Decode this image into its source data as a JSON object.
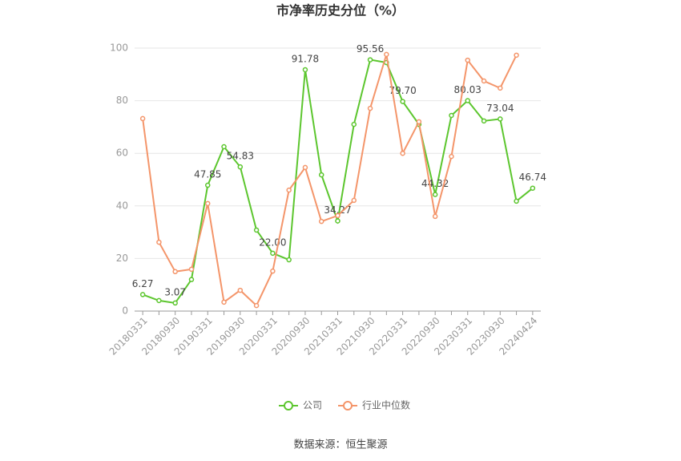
{
  "chart_data": {
    "type": "line",
    "title": "市净率历史分位（%）",
    "source": "数据来源：恒生聚源",
    "categories": [
      "20180331",
      null,
      "20180930",
      null,
      "20190331",
      null,
      "20190930",
      null,
      "20200331",
      null,
      "20200930",
      null,
      "20210331",
      null,
      "20210930",
      null,
      "20220331",
      null,
      "20220930",
      null,
      "20230331",
      null,
      "20230930",
      null,
      "20240424"
    ],
    "series": [
      {
        "name": "公司",
        "color": "#5cc62e",
        "values": [
          6.27,
          4,
          3.07,
          12,
          47.85,
          62.5,
          54.83,
          30.8,
          22.0,
          19.5,
          91.78,
          51.8,
          34.27,
          71,
          95.56,
          94.5,
          79.7,
          71,
          44.32,
          74.4,
          80.03,
          72.3,
          73.04,
          41.8,
          46.74
        ],
        "value_labels": [
          "6.27",
          null,
          "3.07",
          null,
          "47.85",
          null,
          "54.83",
          null,
          "22.00",
          null,
          "91.78",
          null,
          "34.27",
          null,
          "95.56",
          null,
          "79.70",
          null,
          "44.32",
          null,
          "80.03",
          null,
          "73.04",
          null,
          "46.74"
        ]
      },
      {
        "name": "行业中位数",
        "color": "#f4956a",
        "values": [
          73.2,
          26.2,
          15,
          15.9,
          40.9,
          3.4,
          7.9,
          2.1,
          15.2,
          46,
          54.6,
          34.1,
          36.3,
          42.1,
          77.1,
          97.6,
          60,
          72,
          36,
          58.8,
          95.4,
          87.5,
          84.8,
          97.3,
          null
        ]
      }
    ],
    "ylim": [
      0,
      100
    ],
    "yticks": [
      0,
      20,
      40,
      60,
      80,
      100
    ],
    "grid": true,
    "legend": "bottom"
  }
}
